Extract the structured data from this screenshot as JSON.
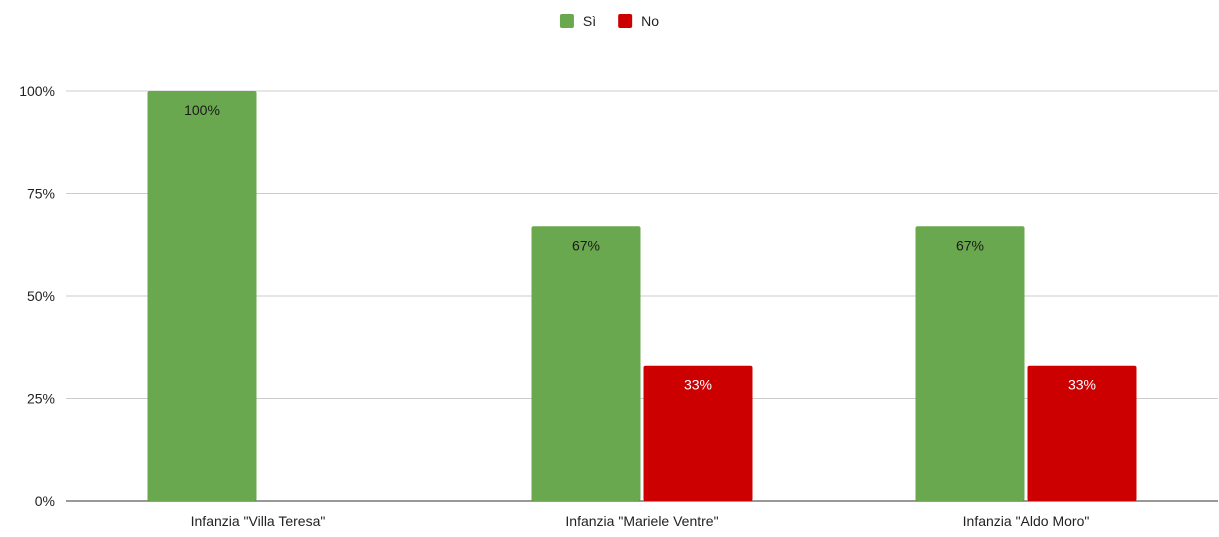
{
  "chart_data": {
    "type": "bar",
    "title": "",
    "xlabel": "",
    "ylabel": "",
    "categories": [
      "Infanzia \"Villa Teresa\"",
      "Infanzia \"Mariele Ventre\"",
      "Infanzia \"Aldo Moro\""
    ],
    "series": [
      {
        "name": "Sì",
        "color": "#6aa84f",
        "label_color": "#1a1a1a",
        "values": [
          100,
          67,
          67
        ],
        "data_labels": [
          "100%",
          "67%",
          "67%"
        ]
      },
      {
        "name": "No",
        "color": "#cc0000",
        "label_color": "#ffffff",
        "values": [
          0,
          33,
          33
        ],
        "data_labels": [
          "",
          "33%",
          "33%"
        ]
      }
    ],
    "ylim": [
      0,
      100
    ],
    "yticks": [
      {
        "value": 0,
        "label": "0%"
      },
      {
        "value": 25,
        "label": "25%"
      },
      {
        "value": 50,
        "label": "50%"
      },
      {
        "value": 75,
        "label": "75%"
      },
      {
        "value": 100,
        "label": "100%"
      }
    ],
    "grid": true,
    "legend_position": "top-center",
    "gridline_color": "#cccccc",
    "axis_line_color": "#333333",
    "text_color": "#222222"
  }
}
